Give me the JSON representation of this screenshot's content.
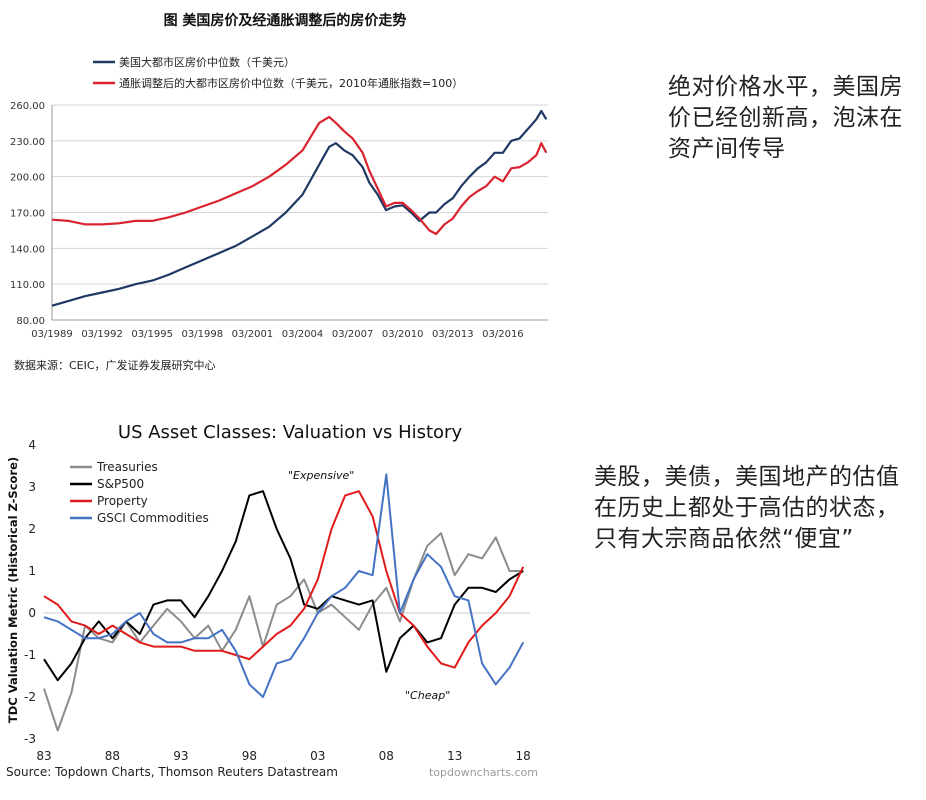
{
  "notes": {
    "top": "绝对价格水平，美国房价已经创新高，泡沫在资产间传导",
    "bottom": "美股，美债，美国地产的估值在历史上都处于高估的状态，只有大宗商品依然“便宜”"
  },
  "chart_data": [
    {
      "type": "line",
      "title": "图  美国房价及经通胀调整后的房价走势",
      "xlabel": "",
      "ylabel": "",
      "ylim": [
        80,
        260
      ],
      "yticks": [
        "260.00",
        "230.00",
        "200.00",
        "170.00",
        "140.00",
        "110.00",
        "80.00"
      ],
      "ytick_values": [
        260,
        230,
        200,
        170,
        140,
        110,
        80
      ],
      "xticks": [
        "03/1989",
        "03/1992",
        "03/1995",
        "03/1998",
        "03/2001",
        "03/2004",
        "03/2007",
        "03/2010",
        "03/2013",
        "03/2016"
      ],
      "xtick_values": [
        1989,
        1992,
        1995,
        1998,
        2001,
        2004,
        2007,
        2010,
        2013,
        2016
      ],
      "xlim": [
        1989,
        2018.7
      ],
      "legend_position": "top-left",
      "source": "数据来源：CEIC，广发证券发展研究中心",
      "series": [
        {
          "name": "美国大都市区房价中位数（千美元）",
          "color": "#1f3864",
          "x": [
            1989,
            1990,
            1991,
            1992,
            1993,
            1994,
            1995,
            1996,
            1997,
            1998,
            1999,
            2000,
            2001,
            2002,
            2003,
            2004,
            2005,
            2005.6,
            2006,
            2006.5,
            2007,
            2007.6,
            2008,
            2008.5,
            2009,
            2009.5,
            2010,
            2010.5,
            2011,
            2011.6,
            2012,
            2012.5,
            2013,
            2013.5,
            2014,
            2014.5,
            2015,
            2015.5,
            2016,
            2016.5,
            2017,
            2017.5,
            2018,
            2018.3,
            2018.6
          ],
          "y": [
            92,
            96,
            100,
            103,
            106,
            110,
            113,
            118,
            124,
            130,
            136,
            142,
            150,
            158,
            170,
            185,
            210,
            225,
            228,
            222,
            218,
            208,
            195,
            185,
            172,
            175,
            176,
            170,
            163,
            170,
            170,
            177,
            182,
            192,
            200,
            207,
            212,
            220,
            220,
            230,
            232,
            240,
            248,
            255,
            248
          ]
        },
        {
          "name": "通胀调整后的大都市区房价中位数（千美元，2010年通胀指数=100）",
          "color": "#d9232e",
          "x": [
            1989,
            1990,
            1991,
            1992,
            1993,
            1994,
            1995,
            1996,
            1997,
            1998,
            1999,
            2000,
            2001,
            2002,
            2003,
            2004,
            2005,
            2005.6,
            2006,
            2006.5,
            2007,
            2007.6,
            2008,
            2008.5,
            2009,
            2009.5,
            2010,
            2010.5,
            2011,
            2011.6,
            2012,
            2012.5,
            2013,
            2013.5,
            2014,
            2014.5,
            2015,
            2015.5,
            2016,
            2016.5,
            2017,
            2017.5,
            2018,
            2018.3,
            2018.6
          ],
          "y": [
            164,
            163,
            160,
            160,
            161,
            163,
            163,
            166,
            170,
            175,
            180,
            186,
            192,
            200,
            210,
            222,
            245,
            250,
            245,
            238,
            232,
            220,
            205,
            190,
            175,
            178,
            178,
            172,
            165,
            155,
            152,
            160,
            165,
            175,
            183,
            188,
            192,
            200,
            196,
            207,
            208,
            212,
            218,
            228,
            220
          ]
        }
      ]
    },
    {
      "type": "line",
      "title": "US Asset Classes: Valuation vs History",
      "xlabel": "",
      "ylabel": "TDC Valuation Metric (Historical Z-Score)",
      "ylim": [
        -3,
        4
      ],
      "yticks": [
        "4",
        "3",
        "2",
        "1",
        "0",
        "-1",
        "-2",
        "-3"
      ],
      "ytick_values": [
        4,
        3,
        2,
        1,
        0,
        -1,
        -2,
        -3
      ],
      "xticks": [
        "83",
        "88",
        "93",
        "98",
        "03",
        "08",
        "13",
        "18"
      ],
      "xtick_values": [
        1983,
        1988,
        1993,
        1998,
        2003,
        2008,
        2013,
        2018
      ],
      "xlim": [
        1983,
        2018.5
      ],
      "legend_position": "top-left",
      "annotations": [
        "\"Expensive\"",
        "\"Cheap\""
      ],
      "source": "Source: Topdown Charts, Thomson Reuters Datastream",
      "watermark": "topdowncharts.com",
      "series": [
        {
          "name": "Treasuries",
          "color": "#8c8c8c",
          "x": [
            1983,
            1984,
            1985,
            1986,
            1987,
            1988,
            1989,
            1990,
            1991,
            1992,
            1993,
            1994,
            1995,
            1996,
            1997,
            1998,
            1999,
            2000,
            2001,
            2002,
            2003,
            2004,
            2005,
            2006,
            2007,
            2008,
            2009,
            2010,
            2011,
            2012,
            2013,
            2014,
            2015,
            2016,
            2017,
            2018
          ],
          "y": [
            -1.8,
            -2.8,
            -1.9,
            -0.3,
            -0.6,
            -0.7,
            -0.2,
            -0.7,
            -0.3,
            0.1,
            -0.2,
            -0.6,
            -0.3,
            -0.9,
            -0.4,
            0.4,
            -0.8,
            0.2,
            0.4,
            0.8,
            0.0,
            0.2,
            -0.1,
            -0.4,
            0.2,
            0.6,
            -0.2,
            0.8,
            1.6,
            1.9,
            0.9,
            1.4,
            1.3,
            1.8,
            1.0,
            1.0
          ]
        },
        {
          "name": "S&P500",
          "color": "#000000",
          "x": [
            1983,
            1984,
            1985,
            1986,
            1987,
            1988,
            1989,
            1990,
            1991,
            1992,
            1993,
            1994,
            1995,
            1996,
            1997,
            1998,
            1999,
            2000,
            2001,
            2002,
            2003,
            2004,
            2005,
            2006,
            2007,
            2008,
            2009,
            2010,
            2011,
            2012,
            2013,
            2014,
            2015,
            2016,
            2017,
            2018
          ],
          "y": [
            -1.1,
            -1.6,
            -1.2,
            -0.6,
            -0.2,
            -0.6,
            -0.2,
            -0.5,
            0.2,
            0.3,
            0.3,
            -0.1,
            0.4,
            1.0,
            1.7,
            2.8,
            2.9,
            2.0,
            1.3,
            0.2,
            0.1,
            0.4,
            0.3,
            0.2,
            0.3,
            -1.4,
            -0.6,
            -0.3,
            -0.7,
            -0.6,
            0.2,
            0.6,
            0.6,
            0.5,
            0.8,
            1.0
          ]
        },
        {
          "name": "Property",
          "color": "#e01b1b",
          "x": [
            1983,
            1984,
            1985,
            1986,
            1987,
            1988,
            1989,
            1990,
            1991,
            1992,
            1993,
            1994,
            1995,
            1996,
            1997,
            1998,
            1999,
            2000,
            2001,
            2002,
            2003,
            2004,
            2005,
            2006,
            2007,
            2008,
            2009,
            2010,
            2011,
            2012,
            2013,
            2014,
            2015,
            2016,
            2017,
            2018
          ],
          "y": [
            0.4,
            0.2,
            -0.2,
            -0.3,
            -0.5,
            -0.3,
            -0.5,
            -0.7,
            -0.8,
            -0.8,
            -0.8,
            -0.9,
            -0.9,
            -0.9,
            -1.0,
            -1.1,
            -0.8,
            -0.5,
            -0.3,
            0.1,
            0.8,
            2.0,
            2.8,
            2.9,
            2.3,
            1.0,
            0.0,
            -0.3,
            -0.8,
            -1.2,
            -1.3,
            -0.7,
            -0.3,
            0.0,
            0.4,
            1.1
          ]
        },
        {
          "name": "GSCI Commodities",
          "color": "#4472c4",
          "x": [
            1983,
            1984,
            1985,
            1986,
            1987,
            1988,
            1989,
            1990,
            1991,
            1992,
            1993,
            1994,
            1995,
            1996,
            1997,
            1998,
            1999,
            2000,
            2001,
            2002,
            2003,
            2004,
            2005,
            2006,
            2007,
            2008,
            2009,
            2010,
            2011,
            2012,
            2013,
            2014,
            2015,
            2016,
            2017,
            2018
          ],
          "y": [
            -0.1,
            -0.2,
            -0.4,
            -0.6,
            -0.6,
            -0.5,
            -0.2,
            0.0,
            -0.5,
            -0.7,
            -0.7,
            -0.6,
            -0.6,
            -0.4,
            -0.9,
            -1.7,
            -2.0,
            -1.2,
            -1.1,
            -0.6,
            0.0,
            0.4,
            0.6,
            1.0,
            0.9,
            3.3,
            0.0,
            0.8,
            1.4,
            1.1,
            0.4,
            0.3,
            -1.2,
            -1.7,
            -1.3,
            -0.7
          ]
        }
      ]
    }
  ]
}
